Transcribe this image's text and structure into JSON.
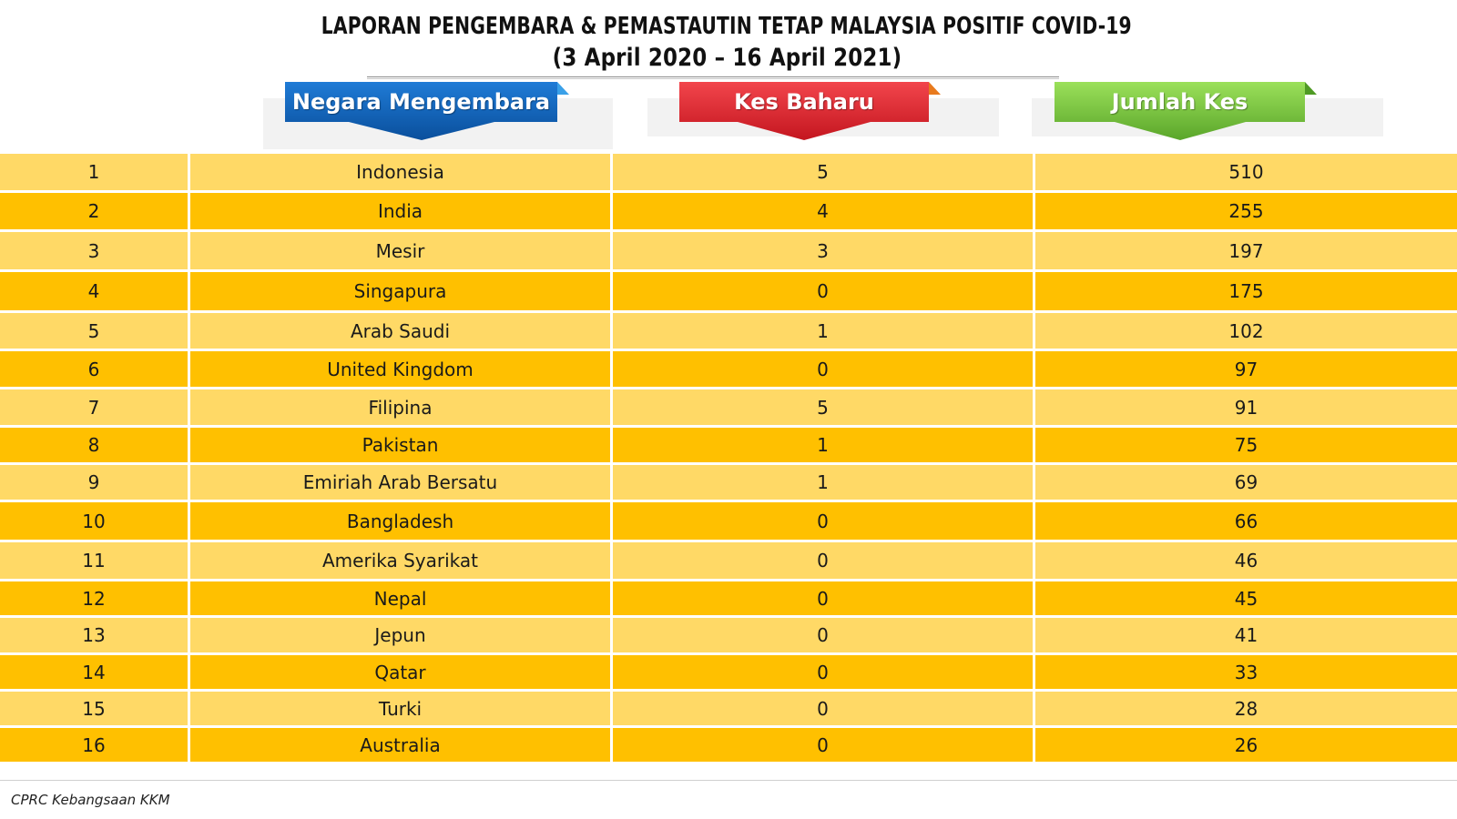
{
  "title": {
    "line1": "LAPORAN PENGEMBARA & PEMASTAUTIN TETAP MALAYSIA POSITIF COVID-19",
    "line2": "(3 April 2020 – 16 April 2021)"
  },
  "headers": {
    "country": "Negara Mengembara",
    "new_cases": "Kes Baharu",
    "total_cases": "Jumlah Kes"
  },
  "colors": {
    "row_light": "#ffd966",
    "row_dark": "#ffc000",
    "header_country": "#1f6fc3",
    "header_new": "#e8303a",
    "header_total": "#7ac943"
  },
  "rows": [
    {
      "rank": "1",
      "country": "Indonesia",
      "new": "5",
      "total": "510"
    },
    {
      "rank": "2",
      "country": "India",
      "new": "4",
      "total": "255"
    },
    {
      "rank": "3",
      "country": "Mesir",
      "new": "3",
      "total": "197"
    },
    {
      "rank": "4",
      "country": "Singapura",
      "new": "0",
      "total": "175"
    },
    {
      "rank": "5",
      "country": "Arab Saudi",
      "new": "1",
      "total": "102"
    },
    {
      "rank": "6",
      "country": "United Kingdom",
      "new": "0",
      "total": "97"
    },
    {
      "rank": "7",
      "country": "Filipina",
      "new": "5",
      "total": "91"
    },
    {
      "rank": "8",
      "country": "Pakistan",
      "new": "1",
      "total": "75"
    },
    {
      "rank": "9",
      "country": "Emiriah Arab Bersatu",
      "new": "1",
      "total": "69"
    },
    {
      "rank": "10",
      "country": "Bangladesh",
      "new": "0",
      "total": "66"
    },
    {
      "rank": "11",
      "country": "Amerika Syarikat",
      "new": "0",
      "total": "46"
    },
    {
      "rank": "12",
      "country": "Nepal",
      "new": "0",
      "total": "45"
    },
    {
      "rank": "13",
      "country": "Jepun",
      "new": "0",
      "total": "41"
    },
    {
      "rank": "14",
      "country": "Qatar",
      "new": "0",
      "total": "33"
    },
    {
      "rank": "15",
      "country": "Turki",
      "new": "0",
      "total": "28"
    },
    {
      "rank": "16",
      "country": "Australia",
      "new": "0",
      "total": "26"
    }
  ],
  "footer": {
    "source": "CPRC Kebangsaan KKM"
  }
}
